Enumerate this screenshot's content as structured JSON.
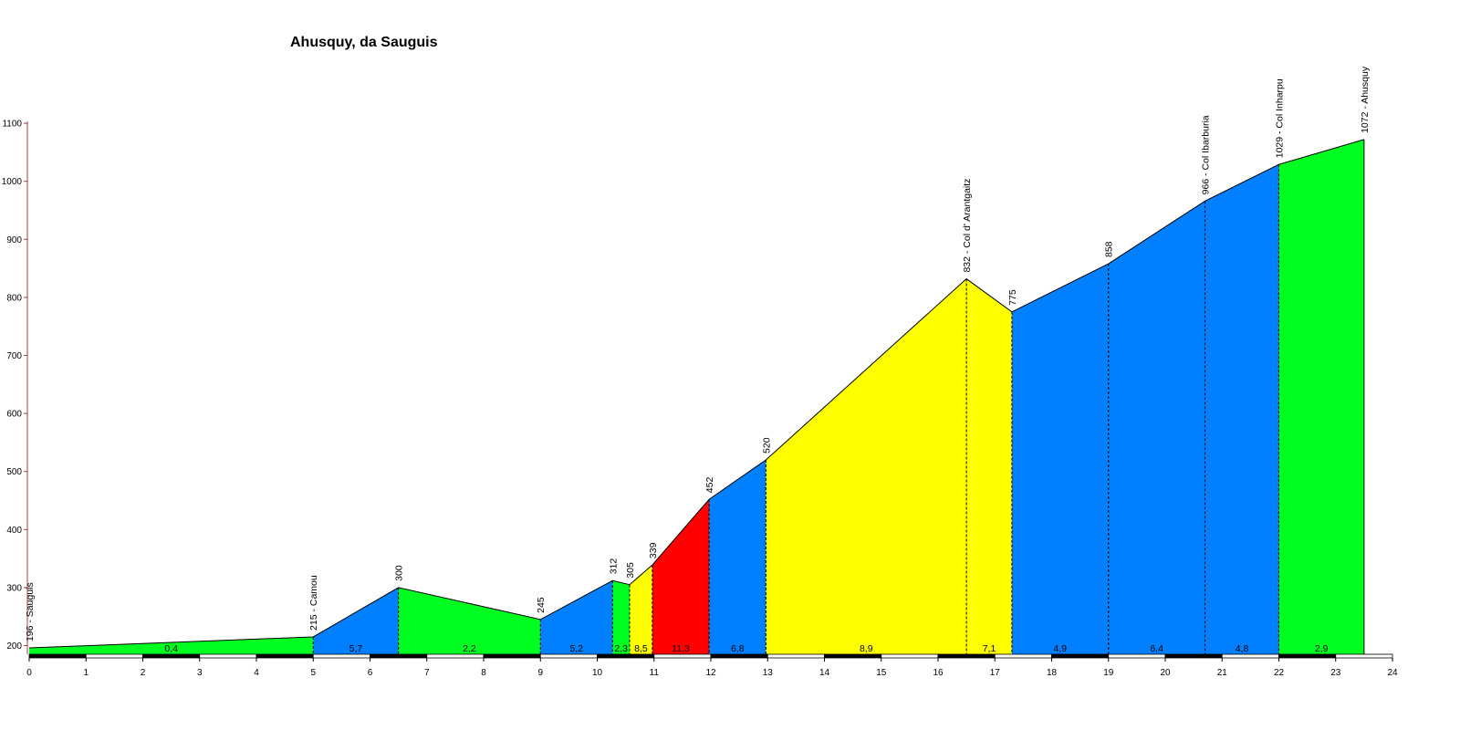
{
  "chart_data": {
    "type": "area",
    "title": "Ahusquy, da Sauguis",
    "xlabel": "",
    "ylabel": "",
    "xlim": [
      0,
      24
    ],
    "ylim": [
      190,
      1100
    ],
    "y_ticks": [
      200,
      300,
      400,
      500,
      600,
      700,
      800,
      900,
      1000,
      1100
    ],
    "x_ticks": [
      0,
      1,
      2,
      3,
      4,
      5,
      6,
      7,
      8,
      9,
      10,
      11,
      12,
      13,
      14,
      15,
      16,
      17,
      18,
      19,
      20,
      21,
      22,
      23,
      24
    ],
    "grid": false,
    "points": [
      {
        "x": 0,
        "y": 196,
        "label": "196 - Sauguis"
      },
      {
        "x": 5.0,
        "y": 215,
        "label": "215 - Camou"
      },
      {
        "x": 6.5,
        "y": 300,
        "label": "300"
      },
      {
        "x": 9.0,
        "y": 245,
        "label": "245"
      },
      {
        "x": 10.27,
        "y": 312,
        "label": "312"
      },
      {
        "x": 10.57,
        "y": 305,
        "label": "305"
      },
      {
        "x": 10.97,
        "y": 339,
        "label": "339"
      },
      {
        "x": 11.97,
        "y": 452,
        "label": "452"
      },
      {
        "x": 12.97,
        "y": 520,
        "label": "520"
      },
      {
        "x": 16.5,
        "y": 832,
        "label": "832 - Col d' Arantgaitz"
      },
      {
        "x": 17.3,
        "y": 775,
        "label": "775"
      },
      {
        "x": 19.0,
        "y": 858,
        "label": "858"
      },
      {
        "x": 20.7,
        "y": 966,
        "label": "966 - Col Ibarburia"
      },
      {
        "x": 22.0,
        "y": 1029,
        "label": "1029 - Col Inharpu"
      },
      {
        "x": 23.5,
        "y": 1072,
        "label": "1072 - Ahusquy"
      }
    ],
    "segments": [
      {
        "from": 0,
        "to": 5.0,
        "grade": "0,4",
        "color": "#00ff21"
      },
      {
        "from": 5.0,
        "to": 6.5,
        "grade": "5,7",
        "color": "#0080ff"
      },
      {
        "from": 6.5,
        "to": 9.0,
        "grade": "2,2",
        "color": "#00ff21"
      },
      {
        "from": 9.0,
        "to": 10.27,
        "grade": "5,2",
        "color": "#0080ff"
      },
      {
        "from": 10.27,
        "to": 10.57,
        "grade": "2,3",
        "color": "#00ff21"
      },
      {
        "from": 10.57,
        "to": 10.97,
        "grade": "8,5",
        "color": "#ffff00"
      },
      {
        "from": 10.97,
        "to": 11.97,
        "grade": "11,3",
        "color": "#ff0000"
      },
      {
        "from": 11.97,
        "to": 12.97,
        "grade": "6,8",
        "color": "#0080ff"
      },
      {
        "from": 12.97,
        "to": 16.5,
        "grade": "8,9",
        "color": "#ffff00"
      },
      {
        "from": 16.5,
        "to": 17.3,
        "grade": "7,1",
        "color": "#ffff00"
      },
      {
        "from": 17.3,
        "to": 19.0,
        "grade": "4,9",
        "color": "#0080ff"
      },
      {
        "from": 19.0,
        "to": 20.7,
        "grade": "6,4",
        "color": "#0080ff"
      },
      {
        "from": 20.7,
        "to": 22.0,
        "grade": "4,8",
        "color": "#0080ff"
      },
      {
        "from": 22.0,
        "to": 23.5,
        "grade": "2,9",
        "color": "#00ff21"
      }
    ]
  }
}
